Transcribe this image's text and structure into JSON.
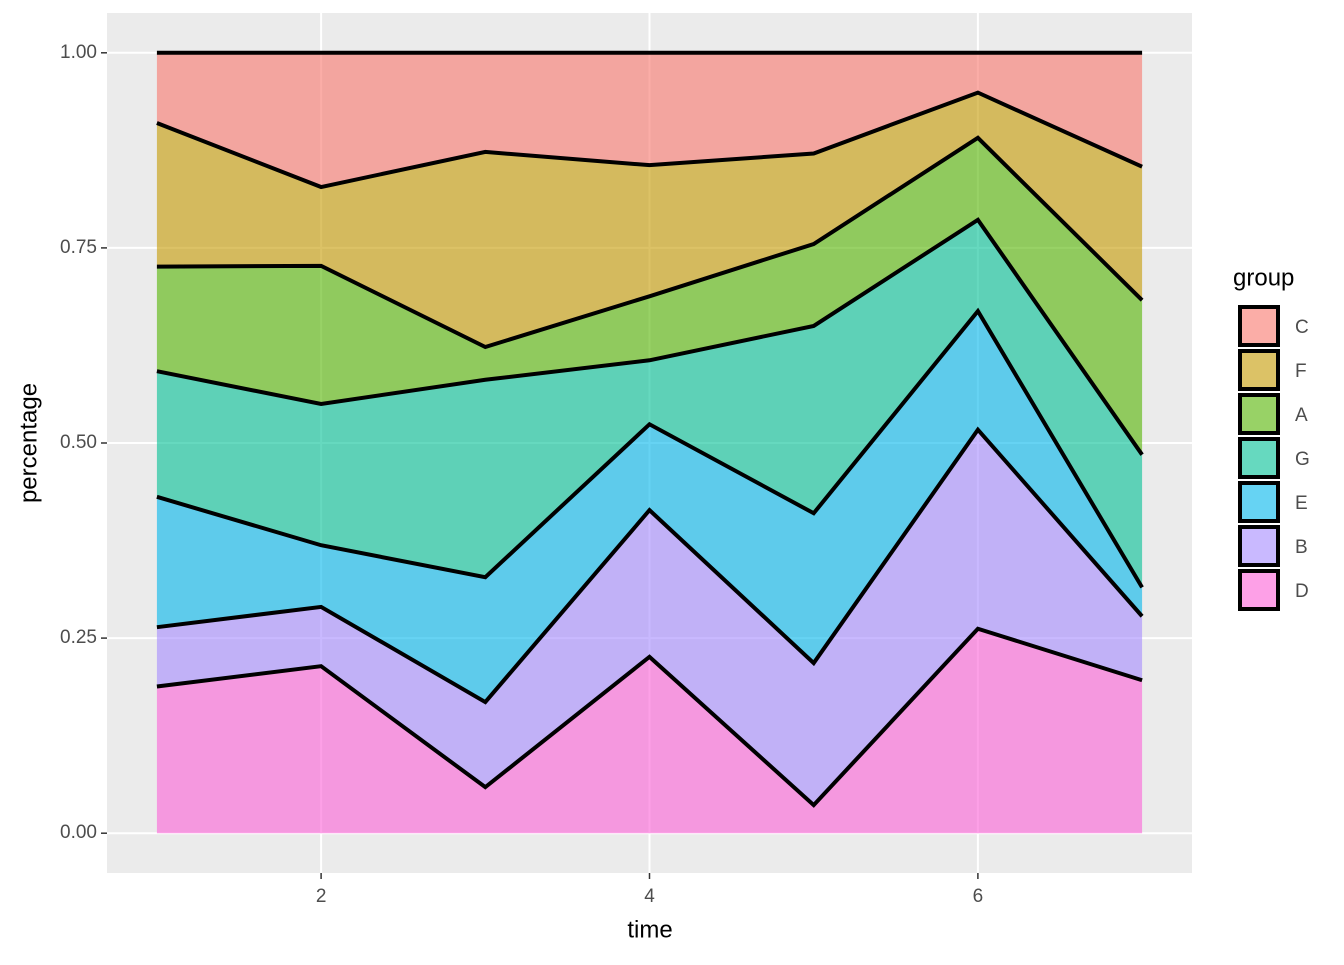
{
  "chart_data": {
    "type": "area",
    "stacked": true,
    "x_label": "time",
    "y_label": "percentage",
    "legend_title": "group",
    "legend_position": "right",
    "x": [
      1,
      2,
      3,
      4,
      5,
      6,
      7
    ],
    "series": [
      {
        "name": "C",
        "color": "#F8766D",
        "values": [
          0.09,
          0.172,
          0.127,
          0.144,
          0.129,
          0.051,
          0.146
        ]
      },
      {
        "name": "F",
        "color": "#C49A00",
        "values": [
          0.184,
          0.101,
          0.25,
          0.168,
          0.116,
          0.058,
          0.171
        ]
      },
      {
        "name": "A",
        "color": "#53B400",
        "values": [
          0.134,
          0.177,
          0.042,
          0.082,
          0.105,
          0.105,
          0.198
        ]
      },
      {
        "name": "G",
        "color": "#00C094",
        "values": [
          0.161,
          0.181,
          0.253,
          0.082,
          0.24,
          0.117,
          0.17
        ]
      },
      {
        "name": "E",
        "color": "#00B6EB",
        "values": [
          0.167,
          0.079,
          0.16,
          0.11,
          0.192,
          0.152,
          0.037
        ]
      },
      {
        "name": "B",
        "color": "#A58AFF",
        "values": [
          0.076,
          0.076,
          0.109,
          0.188,
          0.182,
          0.255,
          0.082
        ]
      },
      {
        "name": "D",
        "color": "#FB61D7",
        "values": [
          0.188,
          0.214,
          0.059,
          0.226,
          0.036,
          0.262,
          0.196
        ]
      }
    ],
    "xlim": [
      0.696,
      7.304
    ],
    "xticks": [
      2,
      4,
      6
    ],
    "ylim": [
      -0.051,
      1.051
    ],
    "yticks": [
      {
        "value": 0,
        "label": "0.00"
      },
      {
        "value": 0.25,
        "label": "0.25"
      },
      {
        "value": 0.5,
        "label": "0.50"
      },
      {
        "value": 0.75,
        "label": "0.75"
      },
      {
        "value": 1,
        "label": "1.00"
      }
    ],
    "grid": true
  }
}
